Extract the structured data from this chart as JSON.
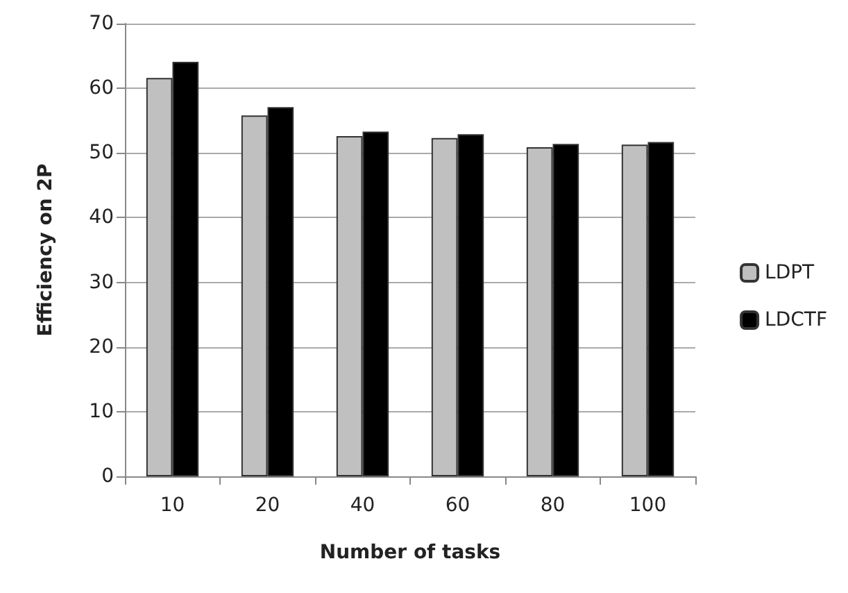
{
  "chart_data": {
    "type": "bar",
    "xlabel": "Number of tasks",
    "ylabel": "Efficiency on 2P",
    "categories": [
      "10",
      "20",
      "40",
      "60",
      "80",
      "100"
    ],
    "series": [
      {
        "name": "LDPT",
        "color": "#c0c0c0",
        "values": [
          61.6,
          55.8,
          52.6,
          52.3,
          50.9,
          51.3
        ]
      },
      {
        "name": "LDCTF",
        "color": "#000000",
        "values": [
          64.1,
          57.1,
          53.3,
          52.9,
          51.4,
          51.7
        ]
      }
    ],
    "ylim": [
      0,
      70
    ],
    "yticks": [
      0,
      10,
      20,
      30,
      40,
      50,
      60,
      70
    ],
    "grid": "y",
    "legend": "right"
  }
}
